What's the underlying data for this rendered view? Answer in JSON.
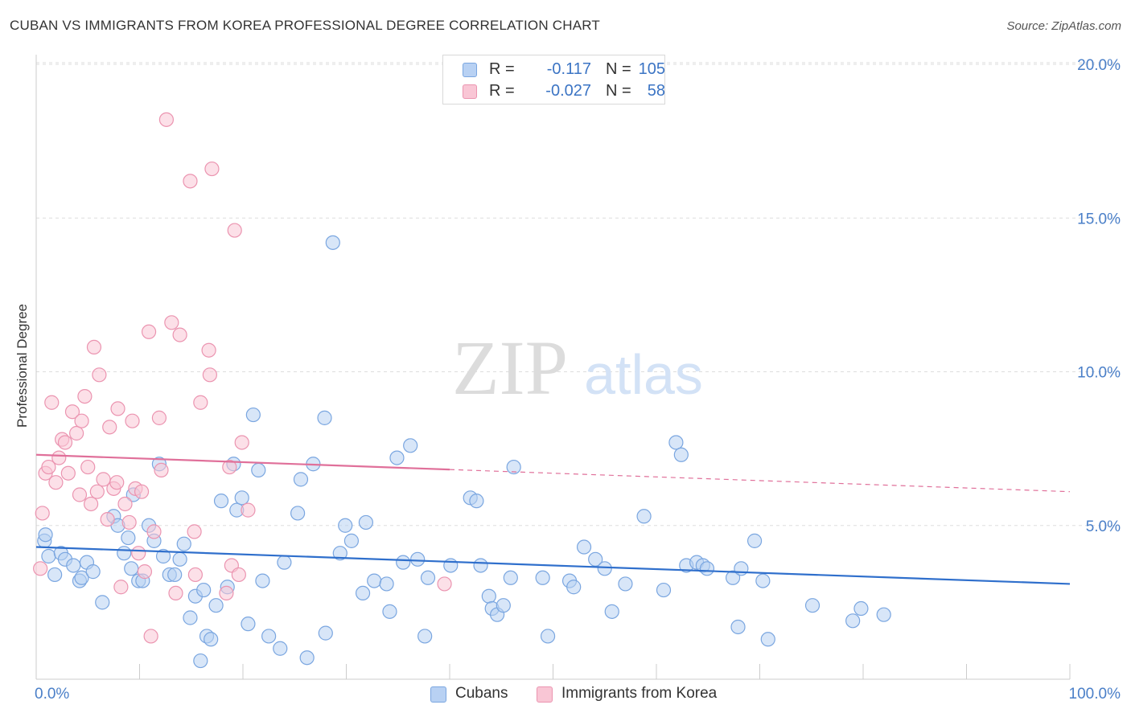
{
  "header": {
    "title": "CUBAN VS IMMIGRANTS FROM KOREA PROFESSIONAL DEGREE CORRELATION CHART",
    "source": "Source: ZipAtlas.com"
  },
  "watermark": {
    "part1": "ZIP",
    "part2": "atlas"
  },
  "legend": {
    "rows": [
      {
        "r_label": "R =",
        "r_value": "-0.117",
        "n_label": "N =",
        "n_value": "105",
        "fill": "#b8d1f3",
        "stroke": "#7aa6e0"
      },
      {
        "r_label": "R =",
        "r_value": "-0.027",
        "n_label": "N =",
        "n_value": "58",
        "fill": "#f9c6d5",
        "stroke": "#eb94b0"
      }
    ]
  },
  "bottom_legend": [
    {
      "label": "Cubans",
      "fill": "#b8d1f3",
      "stroke": "#7aa6e0"
    },
    {
      "label": "Immigrants from Korea",
      "fill": "#f9c6d5",
      "stroke": "#eb94b0"
    }
  ],
  "chart_data": {
    "type": "scatter",
    "title": "CUBAN VS IMMIGRANTS FROM KOREA PROFESSIONAL DEGREE CORRELATION CHART",
    "xlabel": "",
    "ylabel": "Professional Degree",
    "xlim": [
      0,
      100
    ],
    "ylim": [
      0,
      20
    ],
    "x_tick_labels": [
      "0.0%",
      "100.0%"
    ],
    "y_ticks": [
      5,
      10,
      15,
      20
    ],
    "y_tick_labels": [
      "5.0%",
      "10.0%",
      "15.0%",
      "20.0%"
    ],
    "grid": "horizontal dashed",
    "legend_position": "top-center",
    "series": [
      {
        "name": "Cubans",
        "color": "#7aa6e0",
        "fill": "#b8d1f3",
        "line_color": "#2f6fcc",
        "trend": {
          "x": [
            0,
            100
          ],
          "y": [
            4.3,
            3.1
          ],
          "dashed_from": null
        },
        "points": [
          [
            0.8,
            4.5
          ],
          [
            0.9,
            4.7
          ],
          [
            1.2,
            4.0
          ],
          [
            1.8,
            3.4
          ],
          [
            2.4,
            4.1
          ],
          [
            2.8,
            3.9
          ],
          [
            3.6,
            3.7
          ],
          [
            4.2,
            3.2
          ],
          [
            4.4,
            3.3
          ],
          [
            4.9,
            3.8
          ],
          [
            5.5,
            3.5
          ],
          [
            6.4,
            2.5
          ],
          [
            7.5,
            5.3
          ],
          [
            7.9,
            5.0
          ],
          [
            8.5,
            4.1
          ],
          [
            8.9,
            4.6
          ],
          [
            9.4,
            6.0
          ],
          [
            9.9,
            3.2
          ],
          [
            10.3,
            3.2
          ],
          [
            10.9,
            5.0
          ],
          [
            11.4,
            4.5
          ],
          [
            11.9,
            7.0
          ],
          [
            12.3,
            4.0
          ],
          [
            12.9,
            3.4
          ],
          [
            13.4,
            3.4
          ],
          [
            13.9,
            3.9
          ],
          [
            14.3,
            4.4
          ],
          [
            14.9,
            2.0
          ],
          [
            15.4,
            2.7
          ],
          [
            15.9,
            0.6
          ],
          [
            16.5,
            1.4
          ],
          [
            16.9,
            1.3
          ],
          [
            17.4,
            2.4
          ],
          [
            17.9,
            5.8
          ],
          [
            18.5,
            3.0
          ],
          [
            19.1,
            7.0
          ],
          [
            19.4,
            5.5
          ],
          [
            19.9,
            5.9
          ],
          [
            20.5,
            1.8
          ],
          [
            21.0,
            8.6
          ],
          [
            21.5,
            6.8
          ],
          [
            21.9,
            3.2
          ],
          [
            22.5,
            1.4
          ],
          [
            23.6,
            1.0
          ],
          [
            24.0,
            3.8
          ],
          [
            25.3,
            5.4
          ],
          [
            25.6,
            6.5
          ],
          [
            26.2,
            0.7
          ],
          [
            26.8,
            7.0
          ],
          [
            27.9,
            8.5
          ],
          [
            28.0,
            1.5
          ],
          [
            28.7,
            14.2
          ],
          [
            29.4,
            4.1
          ],
          [
            29.9,
            5.0
          ],
          [
            30.5,
            4.5
          ],
          [
            31.6,
            2.8
          ],
          [
            31.9,
            5.1
          ],
          [
            32.7,
            3.2
          ],
          [
            33.9,
            3.1
          ],
          [
            34.2,
            2.2
          ],
          [
            34.9,
            7.2
          ],
          [
            35.5,
            3.8
          ],
          [
            36.2,
            7.6
          ],
          [
            36.9,
            3.9
          ],
          [
            37.6,
            1.4
          ],
          [
            37.9,
            3.3
          ],
          [
            40.1,
            3.7
          ],
          [
            42.0,
            5.9
          ],
          [
            42.6,
            5.8
          ],
          [
            43.0,
            3.7
          ],
          [
            43.8,
            2.7
          ],
          [
            44.1,
            2.3
          ],
          [
            44.6,
            2.1
          ],
          [
            45.2,
            2.4
          ],
          [
            45.9,
            3.3
          ],
          [
            46.2,
            6.9
          ],
          [
            49.0,
            3.3
          ],
          [
            49.5,
            1.4
          ],
          [
            51.6,
            3.2
          ],
          [
            52.0,
            3.0
          ],
          [
            53.0,
            4.3
          ],
          [
            54.1,
            3.9
          ],
          [
            55.0,
            3.6
          ],
          [
            55.7,
            2.2
          ],
          [
            57.0,
            3.1
          ],
          [
            58.8,
            5.3
          ],
          [
            60.7,
            2.9
          ],
          [
            61.9,
            7.7
          ],
          [
            62.4,
            7.3
          ],
          [
            62.9,
            3.7
          ],
          [
            63.9,
            3.8
          ],
          [
            64.5,
            3.7
          ],
          [
            64.9,
            3.6
          ],
          [
            67.4,
            3.3
          ],
          [
            67.9,
            1.7
          ],
          [
            68.2,
            3.6
          ],
          [
            69.5,
            4.5
          ],
          [
            70.3,
            3.2
          ],
          [
            70.8,
            1.3
          ],
          [
            75.1,
            2.4
          ],
          [
            79.0,
            1.9
          ],
          [
            79.8,
            2.3
          ],
          [
            82.0,
            2.1
          ],
          [
            16.2,
            2.9
          ],
          [
            9.2,
            3.6
          ]
        ]
      },
      {
        "name": "Immigrants from Korea",
        "color": "#eb94b0",
        "fill": "#f9c6d5",
        "line_color": "#e0709a",
        "trend": {
          "x": [
            0,
            100
          ],
          "y": [
            7.3,
            6.1
          ],
          "dashed_from": 40
        },
        "points": [
          [
            0.4,
            3.6
          ],
          [
            0.6,
            5.4
          ],
          [
            0.9,
            6.7
          ],
          [
            1.2,
            6.9
          ],
          [
            1.5,
            9.0
          ],
          [
            1.9,
            6.4
          ],
          [
            2.2,
            7.2
          ],
          [
            2.5,
            7.8
          ],
          [
            2.8,
            7.7
          ],
          [
            3.1,
            6.7
          ],
          [
            3.5,
            8.7
          ],
          [
            3.9,
            8.0
          ],
          [
            4.2,
            6.0
          ],
          [
            4.4,
            8.4
          ],
          [
            4.7,
            9.2
          ],
          [
            5.0,
            6.9
          ],
          [
            5.3,
            5.7
          ],
          [
            5.6,
            10.8
          ],
          [
            5.9,
            6.1
          ],
          [
            6.1,
            9.9
          ],
          [
            6.5,
            6.5
          ],
          [
            6.9,
            5.2
          ],
          [
            7.1,
            8.2
          ],
          [
            7.5,
            6.2
          ],
          [
            7.8,
            6.4
          ],
          [
            7.9,
            8.8
          ],
          [
            8.2,
            3.0
          ],
          [
            8.6,
            5.7
          ],
          [
            9.0,
            5.1
          ],
          [
            9.3,
            8.4
          ],
          [
            9.6,
            6.2
          ],
          [
            9.9,
            4.1
          ],
          [
            10.2,
            6.1
          ],
          [
            10.5,
            3.5
          ],
          [
            10.9,
            11.3
          ],
          [
            11.1,
            1.4
          ],
          [
            11.4,
            4.8
          ],
          [
            11.9,
            8.5
          ],
          [
            12.1,
            6.8
          ],
          [
            12.6,
            18.2
          ],
          [
            13.1,
            11.6
          ],
          [
            13.5,
            2.8
          ],
          [
            13.9,
            11.2
          ],
          [
            14.9,
            16.2
          ],
          [
            15.3,
            4.8
          ],
          [
            15.4,
            3.4
          ],
          [
            15.9,
            9.0
          ],
          [
            16.7,
            10.7
          ],
          [
            16.8,
            9.9
          ],
          [
            17.0,
            16.6
          ],
          [
            18.4,
            2.8
          ],
          [
            18.7,
            6.9
          ],
          [
            18.9,
            3.7
          ],
          [
            19.2,
            14.6
          ],
          [
            19.6,
            3.4
          ],
          [
            19.9,
            7.7
          ],
          [
            20.5,
            5.5
          ],
          [
            39.5,
            3.1
          ]
        ]
      }
    ]
  }
}
